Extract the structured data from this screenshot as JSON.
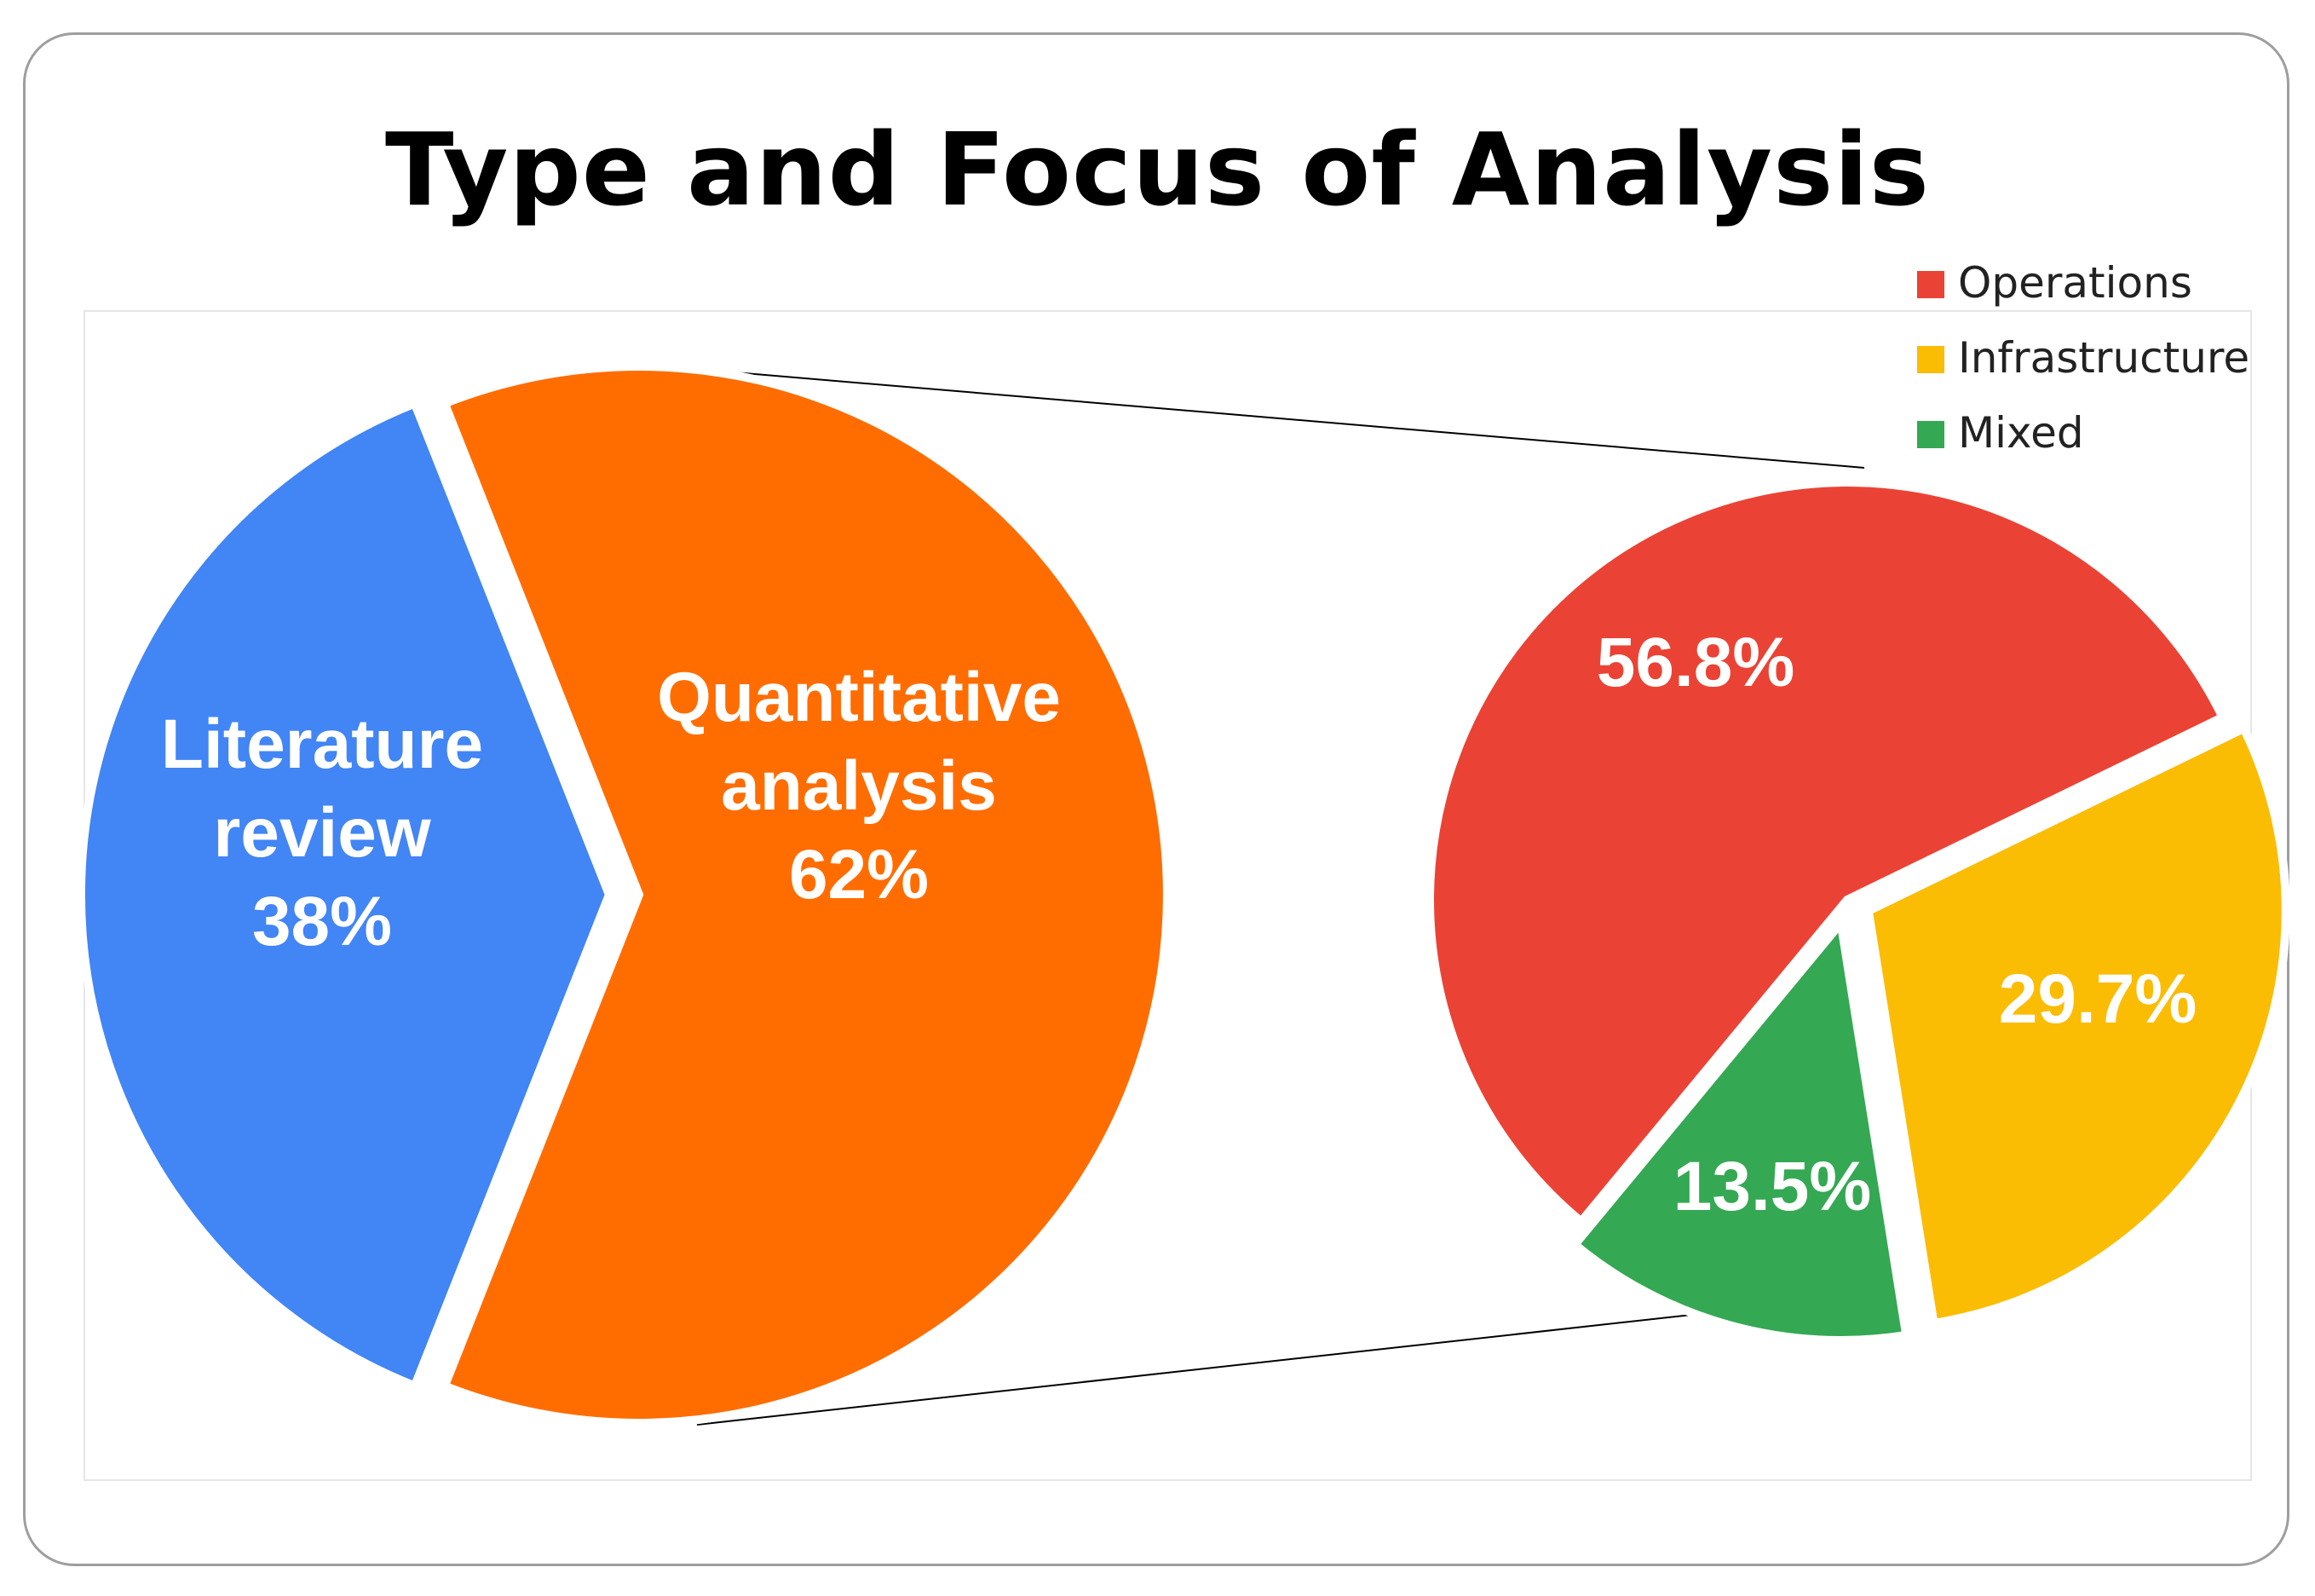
{
  "chart_data": {
    "type": "pie",
    "title": "Type and Focus of Analysis",
    "main_pie": {
      "slices": [
        {
          "name": "Quantitative analysis",
          "label_lines": [
            "Quantitative",
            "analysis",
            "62%"
          ],
          "value": 62,
          "color": "#ff6d01"
        },
        {
          "name": "Literature review",
          "label_lines": [
            "Literature",
            "review",
            "38%"
          ],
          "value": 38,
          "color": "#4285f4"
        }
      ]
    },
    "breakdown_pie": {
      "of_slice": "Quantitative analysis",
      "slices": [
        {
          "name": "Operations",
          "label": "56.8%",
          "value": 56.8,
          "color": "#ea4335"
        },
        {
          "name": "Infrastructure",
          "label": "29.7%",
          "value": 29.7,
          "color": "#fbbc04"
        },
        {
          "name": "Mixed",
          "label": "13.5%",
          "value": 13.5,
          "color": "#34a853"
        }
      ]
    },
    "legend": {
      "position": "top-right",
      "entries": [
        {
          "name": "Operations",
          "color": "#ea4335"
        },
        {
          "name": "Infrastructure",
          "color": "#fbbc04"
        },
        {
          "name": "Mixed",
          "color": "#34a853"
        }
      ]
    }
  }
}
